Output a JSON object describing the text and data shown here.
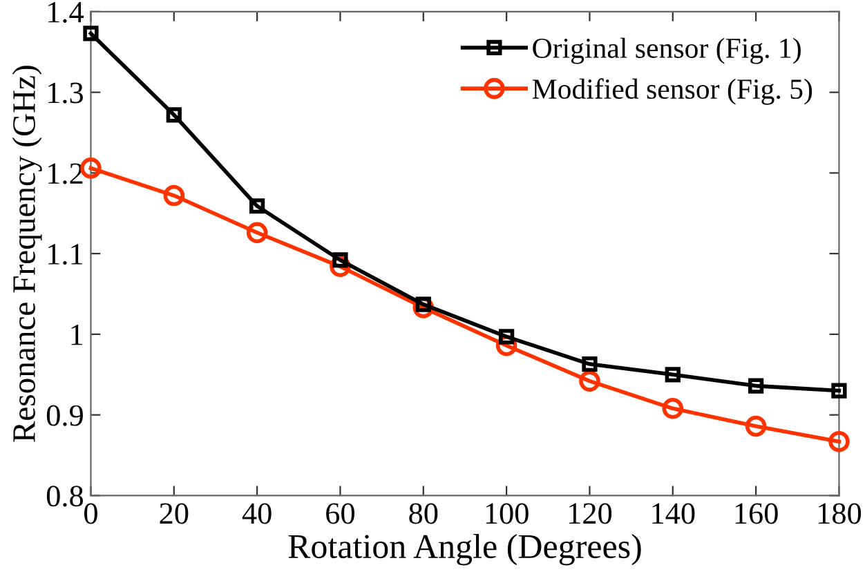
{
  "chart_data": {
    "type": "line",
    "xlabel": "Rotation Angle (Degrees)",
    "ylabel": "Resonance Frequency (GHz)",
    "x": [
      0,
      20,
      40,
      60,
      80,
      100,
      120,
      140,
      160,
      180
    ],
    "series": [
      {
        "name": "Original sensor (Fig. 1)",
        "color": "#000000",
        "marker": "square",
        "values": [
          1.373,
          1.272,
          1.159,
          1.092,
          1.037,
          0.997,
          0.963,
          0.95,
          0.936,
          0.93
        ]
      },
      {
        "name": "Modified sensor (Fig. 5)",
        "color": "#ff3300",
        "marker": "circle",
        "values": [
          1.206,
          1.172,
          1.126,
          1.084,
          1.033,
          0.986,
          0.942,
          0.908,
          0.886,
          0.867
        ]
      }
    ],
    "xlim": [
      0,
      180
    ],
    "xticks": [
      0,
      20,
      40,
      60,
      80,
      100,
      120,
      140,
      160,
      180
    ],
    "ylim": [
      0.8,
      1.4
    ],
    "yticks": [
      0.8,
      0.9,
      {
        "value": 1,
        "label": "1"
      },
      1.1,
      1.2,
      1.3,
      1.4
    ],
    "grid": false,
    "legend": "top right",
    "line_style": "solid"
  }
}
